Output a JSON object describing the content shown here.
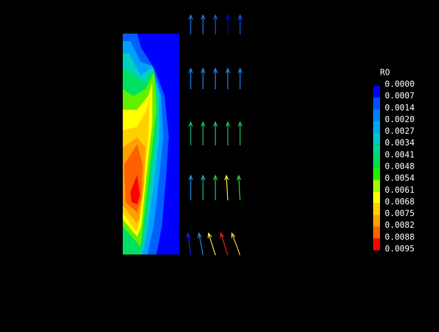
{
  "legend": {
    "title": "RO",
    "labels": [
      "0.0000",
      "0.0007",
      "0.0014",
      "0.0020",
      "0.0027",
      "0.0034",
      "0.0041",
      "0.0048",
      "0.0054",
      "0.0061",
      "0.0068",
      "0.0075",
      "0.0082",
      "0.0088",
      "0.0095"
    ],
    "colors": [
      "#0000ff",
      "#0050ff",
      "#0080ff",
      "#00a8f0",
      "#00c8c8",
      "#00d890",
      "#00e050",
      "#20f000",
      "#a0ff00",
      "#ffff00",
      "#ffd000",
      "#ffa000",
      "#ff6000",
      "#ff0000"
    ]
  }
}
